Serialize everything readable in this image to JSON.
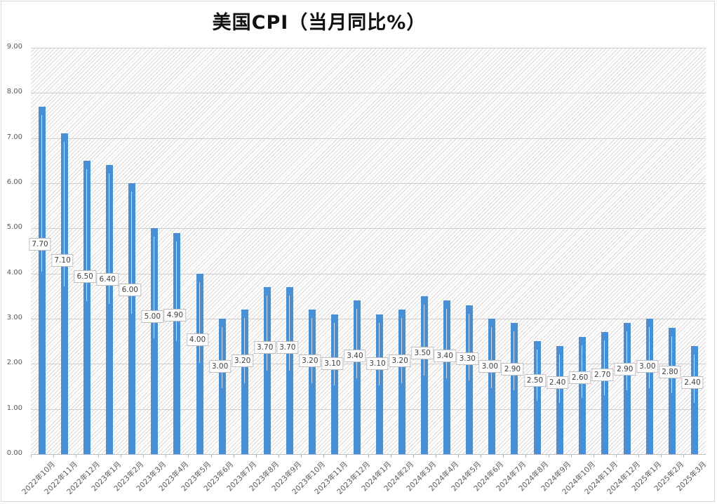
{
  "chart_data": {
    "type": "bar",
    "title": "美国CPI（当月同比%）",
    "xlabel": "",
    "ylabel": "",
    "ylim": [
      0,
      9
    ],
    "yticks": [
      "0.00",
      "1.00",
      "2.00",
      "3.00",
      "4.00",
      "5.00",
      "6.00",
      "7.00",
      "8.00",
      "9.00"
    ],
    "grid": true,
    "legend": null,
    "bar_color": "#4a8fd4",
    "categories": [
      "2022年10月",
      "2022年11月",
      "2022年12月",
      "2023年1月",
      "2023年2月",
      "2023年3月",
      "2023年4月",
      "2023年5月",
      "2023年6月",
      "2023年7月",
      "2023年8月",
      "2023年9月",
      "2023年10月",
      "2023年11月",
      "2023年12月",
      "2024年1月",
      "2024年2月",
      "2024年3月",
      "2024年4月",
      "2024年5月",
      "2024年6月",
      "2024年7月",
      "2024年8月",
      "2024年9月",
      "2024年10月",
      "2024年11月",
      "2024年12月",
      "2025年1月",
      "2025年2月",
      "2025年3月"
    ],
    "values": [
      7.7,
      7.1,
      6.5,
      6.4,
      6.0,
      5.0,
      4.9,
      4.0,
      3.0,
      3.2,
      3.7,
      3.7,
      3.2,
      3.1,
      3.4,
      3.1,
      3.2,
      3.5,
      3.4,
      3.3,
      3.0,
      2.9,
      2.5,
      2.4,
      2.6,
      2.7,
      2.9,
      3.0,
      2.8,
      2.4
    ],
    "labels": [
      "7.70",
      "7.10",
      "6.50",
      "6.40",
      "6.00",
      "5.00",
      "4.90",
      "4.00",
      "3.00",
      "3.20",
      "3.70",
      "3.70",
      "3.20",
      "3.10",
      "3.40",
      "3.10",
      "3.20",
      "3.50",
      "3.40",
      "3.30",
      "3.00",
      "2.90",
      "2.50",
      "2.40",
      "2.60",
      "2.70",
      "2.90",
      "3.00",
      "2.80",
      "2.40"
    ]
  }
}
